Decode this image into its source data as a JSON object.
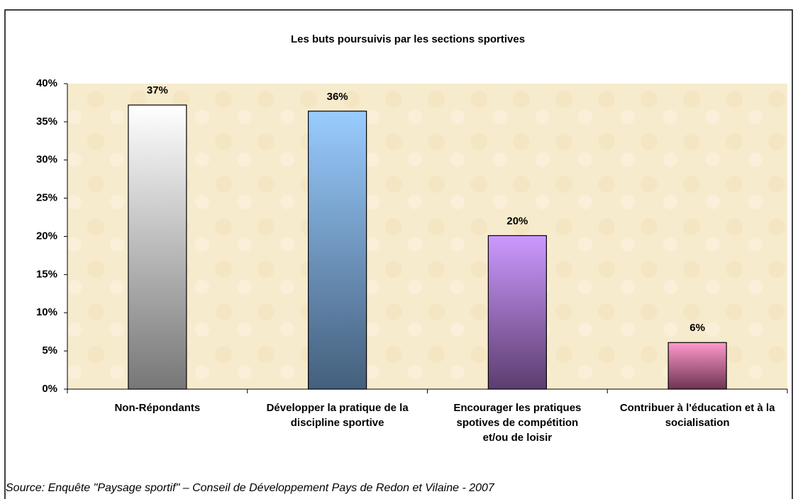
{
  "chart_data": {
    "type": "bar",
    "title": "Les buts poursuivis par les sections sportives",
    "categories": [
      "Non-Répondants",
      "Développer la pratique de la discipline sportive",
      "Encourager les pratiques spotives de compétition et/ou de loisir",
      "Contribuer à l'éducation et à la socialisation"
    ],
    "values": [
      37.2,
      36.4,
      20.1,
      6.1
    ],
    "value_labels": [
      "37%",
      "36%",
      "20%",
      "6%"
    ],
    "colors": [
      [
        "#ffffff",
        "#777777"
      ],
      [
        "#99ccff",
        "#445f7c"
      ],
      [
        "#cc99ff",
        "#5c3d6e"
      ],
      [
        "#ff99cc",
        "#6e3450"
      ]
    ],
    "ylim": [
      0,
      40
    ],
    "yticks": [
      {
        "value": 0,
        "label": "0%"
      },
      {
        "value": 5,
        "label": "5%"
      },
      {
        "value": 10,
        "label": "10%"
      },
      {
        "value": 15,
        "label": "15%"
      },
      {
        "value": 20,
        "label": "20%"
      },
      {
        "value": 25,
        "label": "25%"
      },
      {
        "value": 30,
        "label": "30%"
      },
      {
        "value": 35,
        "label": "35%"
      },
      {
        "value": 40,
        "label": "40%"
      }
    ],
    "source": "Source: Enquête \"Paysage sportif\" – Conseil de Développement Pays de Redon et Vilaine - 2007"
  }
}
